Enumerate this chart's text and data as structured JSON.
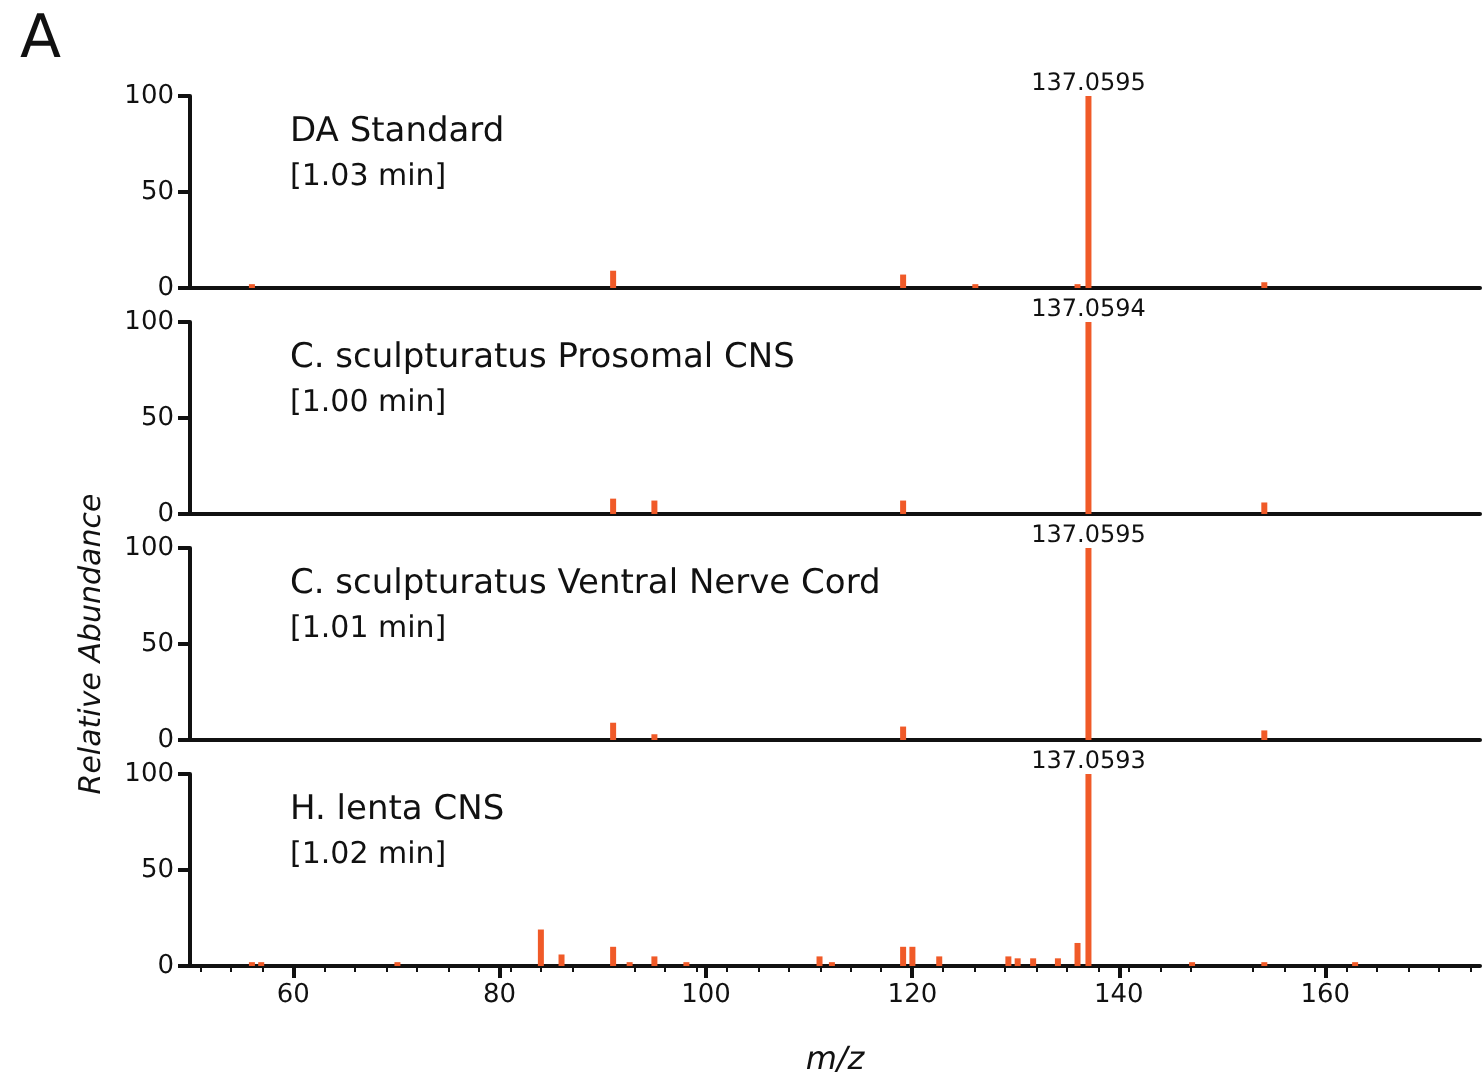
{
  "chart_data": [
    {
      "type": "bar",
      "title": "DA Standard",
      "subtitle": "[1.03 min]",
      "annotations": [
        "A",
        "137.0595"
      ],
      "series": [
        {
          "color": "#f05a28",
          "x": [
            56.0,
            91.0,
            119.1,
            126.1,
            136.0,
            137.0595,
            154.1
          ],
          "values": [
            2,
            9,
            7,
            2,
            2,
            100,
            3
          ]
        }
      ],
      "xlim": [
        50,
        175
      ],
      "xticks": [
        60,
        80,
        100,
        120,
        140,
        160
      ],
      "ylim": [
        0,
        100
      ],
      "yticks": [
        0,
        50,
        100
      ],
      "tick_labels": "y",
      "grid": false
    },
    {
      "type": "bar",
      "title": "C. sculpturatus Prosomal CNS",
      "subtitle": "[1.00 min]",
      "annotations": [
        "137.0594"
      ],
      "series": [
        {
          "color": "#f05a28",
          "x": [
            91.0,
            95.0,
            119.1,
            137.0594,
            154.1
          ],
          "values": [
            8,
            7,
            7,
            100,
            6
          ]
        }
      ],
      "xlim": [
        50,
        175
      ],
      "xticks": [
        60,
        80,
        100,
        120,
        140,
        160
      ],
      "ylim": [
        0,
        100
      ],
      "yticks": [
        0,
        50,
        100
      ],
      "tick_labels": "y",
      "grid": false
    },
    {
      "type": "bar",
      "title": "C. sculpturatus Ventral Nerve Cord",
      "subtitle": "[1.01 min]",
      "ylabel": "Relative Abundance",
      "annotations": [
        "137.0595"
      ],
      "series": [
        {
          "color": "#f05a28",
          "x": [
            91.0,
            95.0,
            119.1,
            137.0595,
            154.1
          ],
          "values": [
            9,
            3,
            7,
            100,
            5
          ]
        }
      ],
      "xlim": [
        50,
        175
      ],
      "xticks": [
        60,
        80,
        100,
        120,
        140,
        160
      ],
      "ylim": [
        0,
        100
      ],
      "yticks": [
        0,
        50,
        100
      ],
      "tick_labels": "y",
      "grid": false
    },
    {
      "type": "bar",
      "title": "H. lenta CNS",
      "subtitle": "[1.02 min]",
      "xlabel": "m/z",
      "annotations": [
        "137.0593"
      ],
      "series": [
        {
          "color": "#f05a28",
          "x": [
            56.0,
            56.9,
            70.1,
            84.0,
            86.0,
            91.0,
            92.6,
            95.0,
            98.1,
            111.0,
            112.2,
            119.1,
            120.0,
            122.6,
            129.3,
            130.2,
            131.7,
            134.1,
            136.0,
            137.0593,
            147.1,
            154.1,
            162.9
          ],
          "values": [
            2,
            2,
            2,
            19,
            6,
            10,
            2,
            5,
            2,
            5,
            2,
            10,
            10,
            5,
            5,
            4,
            4,
            4,
            12,
            100,
            2,
            2,
            2
          ]
        }
      ],
      "xlim": [
        50,
        175
      ],
      "xticks": [
        60,
        80,
        100,
        120,
        140,
        160
      ],
      "ylim": [
        0,
        100
      ],
      "yticks": [
        0,
        50,
        100
      ],
      "grid": false
    }
  ]
}
